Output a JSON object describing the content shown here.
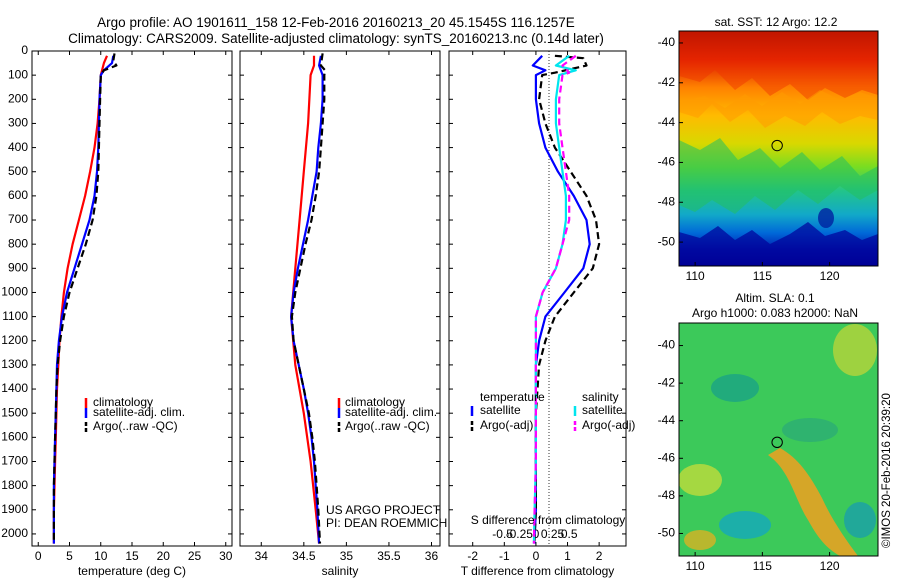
{
  "header": {
    "line1": "Argo profile: AO 1901611_158 12-Feb-2016 20160213_20 45.1545S 116.1257E",
    "line2": "Climatology: CARS2009. Satellite-adjusted climatology: synTS_20160213.nc (0.14d later)"
  },
  "colors": {
    "climatology": "#ff0000",
    "satellite": "#0000ff",
    "argo": "#000000",
    "salinity_sat": "#00e5ee",
    "salinity_argo": "#ff00ff"
  },
  "chart_data": [
    {
      "type": "line",
      "id": "temperature",
      "xlabel": "temperature (deg C)",
      "ylabel": "",
      "xlim": [
        -1,
        31
      ],
      "ylim": [
        2050,
        0
      ],
      "xticks": [
        0,
        5,
        10,
        15,
        20,
        25,
        30
      ],
      "yticks": [
        0,
        100,
        200,
        300,
        400,
        500,
        600,
        700,
        800,
        900,
        1000,
        1100,
        1200,
        1300,
        1400,
        1500,
        1600,
        1700,
        1800,
        1900,
        2000
      ],
      "legend": [
        "climatology",
        "satellite-adj. clim.",
        "Argo(..raw -QC)"
      ],
      "series": [
        {
          "name": "climatology",
          "color": "#ff0000",
          "dash": "",
          "points": [
            [
              11.0,
              20
            ],
            [
              10.5,
              50
            ],
            [
              10.0,
              100
            ],
            [
              9.8,
              200
            ],
            [
              9.5,
              300
            ],
            [
              9.0,
              400
            ],
            [
              8.3,
              500
            ],
            [
              7.5,
              600
            ],
            [
              6.5,
              700
            ],
            [
              5.5,
              800
            ],
            [
              4.7,
              900
            ],
            [
              4.1,
              1000
            ],
            [
              3.7,
              1100
            ],
            [
              3.4,
              1200
            ],
            [
              3.2,
              1300
            ],
            [
              3.0,
              1400
            ],
            [
              2.9,
              1500
            ],
            [
              2.8,
              1600
            ],
            [
              2.7,
              1700
            ],
            [
              2.6,
              1800
            ],
            [
              2.5,
              1900
            ],
            [
              2.5,
              2040
            ]
          ]
        },
        {
          "name": "satellite-adj. clim.",
          "color": "#0000ff",
          "dash": "",
          "points": [
            [
              12.0,
              20
            ],
            [
              11.8,
              50
            ],
            [
              10.5,
              80
            ],
            [
              10.0,
              100
            ],
            [
              9.8,
              200
            ],
            [
              9.7,
              300
            ],
            [
              9.6,
              400
            ],
            [
              9.4,
              500
            ],
            [
              9.0,
              600
            ],
            [
              8.2,
              700
            ],
            [
              7.0,
              800
            ],
            [
              5.8,
              900
            ],
            [
              4.6,
              1000
            ],
            [
              3.8,
              1100
            ],
            [
              3.3,
              1200
            ],
            [
              3.0,
              1300
            ],
            [
              2.9,
              1400
            ],
            [
              2.8,
              1500
            ],
            [
              2.7,
              1600
            ],
            [
              2.6,
              1700
            ],
            [
              2.5,
              1800
            ],
            [
              2.5,
              1900
            ],
            [
              2.5,
              2040
            ]
          ]
        },
        {
          "name": "Argo(..raw -QC)",
          "color": "#000000",
          "dash": "7,4",
          "points": [
            [
              12.2,
              10
            ],
            [
              12.0,
              40
            ],
            [
              12.5,
              60
            ],
            [
              10.5,
              80
            ],
            [
              10.0,
              100
            ],
            [
              9.9,
              200
            ],
            [
              9.8,
              300
            ],
            [
              9.7,
              400
            ],
            [
              9.6,
              500
            ],
            [
              9.3,
              600
            ],
            [
              8.7,
              700
            ],
            [
              7.6,
              800
            ],
            [
              6.3,
              900
            ],
            [
              5.0,
              1000
            ],
            [
              4.1,
              1100
            ],
            [
              3.5,
              1200
            ],
            [
              3.1,
              1300
            ],
            [
              2.9,
              1400
            ],
            [
              2.8,
              1500
            ],
            [
              2.7,
              1600
            ],
            [
              2.6,
              1700
            ],
            [
              2.5,
              1800
            ],
            [
              2.5,
              1900
            ],
            [
              2.5,
              2040
            ]
          ]
        }
      ]
    },
    {
      "type": "line",
      "id": "salinity",
      "xlabel": "salinity",
      "ylabel": "",
      "xlim": [
        33.75,
        36.1
      ],
      "ylim": [
        2050,
        0
      ],
      "xticks": [
        34,
        34.5,
        35,
        35.5,
        36
      ],
      "legend": [
        "climatology",
        "satellite-adj. clim.",
        "Argo(..raw -QC)"
      ],
      "annotation": [
        "US ARGO PROJECT",
        "PI: DEAN ROEMMICH"
      ],
      "series": [
        {
          "name": "climatology",
          "color": "#ff0000",
          "dash": "",
          "points": [
            [
              34.62,
              20
            ],
            [
              34.62,
              60
            ],
            [
              34.58,
              100
            ],
            [
              34.55,
              300
            ],
            [
              34.5,
              500
            ],
            [
              34.45,
              700
            ],
            [
              34.4,
              900
            ],
            [
              34.35,
              1100
            ],
            [
              34.4,
              1300
            ],
            [
              34.5,
              1500
            ],
            [
              34.58,
              1700
            ],
            [
              34.64,
              1900
            ],
            [
              34.68,
              2040
            ]
          ]
        },
        {
          "name": "satellite-adj. clim.",
          "color": "#0000ff",
          "dash": "",
          "points": [
            [
              34.7,
              20
            ],
            [
              34.68,
              60
            ],
            [
              34.72,
              100
            ],
            [
              34.72,
              200
            ],
            [
              34.7,
              300
            ],
            [
              34.67,
              400
            ],
            [
              34.65,
              500
            ],
            [
              34.6,
              600
            ],
            [
              34.55,
              700
            ],
            [
              34.49,
              800
            ],
            [
              34.43,
              900
            ],
            [
              34.38,
              1000
            ],
            [
              34.35,
              1100
            ],
            [
              34.38,
              1200
            ],
            [
              34.44,
              1300
            ],
            [
              34.5,
              1400
            ],
            [
              34.55,
              1500
            ],
            [
              34.59,
              1600
            ],
            [
              34.62,
              1700
            ],
            [
              34.64,
              1800
            ],
            [
              34.66,
              1900
            ],
            [
              34.68,
              2040
            ]
          ]
        },
        {
          "name": "Argo(..raw -QC)",
          "color": "#000000",
          "dash": "7,4",
          "points": [
            [
              34.72,
              10
            ],
            [
              34.7,
              60
            ],
            [
              34.75,
              80
            ],
            [
              34.74,
              100
            ],
            [
              34.74,
              200
            ],
            [
              34.72,
              300
            ],
            [
              34.7,
              400
            ],
            [
              34.68,
              500
            ],
            [
              34.64,
              600
            ],
            [
              34.59,
              700
            ],
            [
              34.52,
              800
            ],
            [
              34.46,
              900
            ],
            [
              34.4,
              1000
            ],
            [
              34.36,
              1100
            ],
            [
              34.38,
              1200
            ],
            [
              34.44,
              1300
            ],
            [
              34.5,
              1400
            ],
            [
              34.56,
              1500
            ],
            [
              34.6,
              1600
            ],
            [
              34.63,
              1700
            ],
            [
              34.65,
              1800
            ],
            [
              34.67,
              1900
            ],
            [
              34.69,
              2040
            ]
          ]
        }
      ]
    },
    {
      "type": "line",
      "id": "difference",
      "xlabel": "T difference from climatology",
      "xlabel2": "S difference from climatology",
      "xlim": [
        -2.75,
        2.85
      ],
      "ylim": [
        2050,
        0
      ],
      "xticks": [
        -2,
        -1,
        0,
        1,
        2
      ],
      "xticks2": [
        -0.5,
        -0.25,
        0,
        0.25,
        0.5
      ],
      "legend_titles": [
        "temperature",
        "salinity"
      ],
      "legend": [
        "satellite",
        "Argo(-adj)",
        "satellite",
        "Argo(-adj)"
      ],
      "series": [
        {
          "name": "satellite",
          "group": "temperature",
          "color": "#0000ff",
          "dash": "",
          "points": [
            [
              0.2,
              20
            ],
            [
              -0.1,
              60
            ],
            [
              0.3,
              80
            ],
            [
              0.0,
              100
            ],
            [
              0.0,
              200
            ],
            [
              0.1,
              300
            ],
            [
              0.3,
              400
            ],
            [
              0.7,
              500
            ],
            [
              1.2,
              600
            ],
            [
              1.6,
              700
            ],
            [
              1.7,
              800
            ],
            [
              1.5,
              900
            ],
            [
              0.9,
              1000
            ],
            [
              0.3,
              1100
            ],
            [
              0.1,
              1200
            ],
            [
              0.0,
              1300
            ],
            [
              0.0,
              1500
            ],
            [
              0.0,
              1700
            ],
            [
              0.0,
              1900
            ],
            [
              -0.05,
              2040
            ]
          ]
        },
        {
          "name": "Argo(-adj)",
          "group": "temperature",
          "color": "#000000",
          "dash": "7,4",
          "points": [
            [
              0.6,
              20
            ],
            [
              1.5,
              30
            ],
            [
              1.6,
              60
            ],
            [
              0.6,
              90
            ],
            [
              0.2,
              100
            ],
            [
              0.1,
              200
            ],
            [
              0.3,
              300
            ],
            [
              0.6,
              400
            ],
            [
              1.1,
              500
            ],
            [
              1.6,
              600
            ],
            [
              1.9,
              700
            ],
            [
              2.0,
              800
            ],
            [
              1.8,
              900
            ],
            [
              1.2,
              1000
            ],
            [
              0.6,
              1100
            ],
            [
              0.3,
              1200
            ],
            [
              0.1,
              1300
            ],
            [
              0.0,
              1500
            ],
            [
              0.0,
              1700
            ],
            [
              0.0,
              1900
            ],
            [
              -0.05,
              2040
            ]
          ]
        },
        {
          "name": "satellite",
          "group": "salinity",
          "color": "#00e5ee",
          "dash": "",
          "points": [
            [
              0.5,
              20
            ],
            [
              0.3,
              60
            ],
            [
              0.6,
              80
            ],
            [
              0.35,
              100
            ],
            [
              0.3,
              200
            ],
            [
              0.3,
              300
            ],
            [
              0.35,
              400
            ],
            [
              0.4,
              500
            ],
            [
              0.45,
              600
            ],
            [
              0.45,
              700
            ],
            [
              0.4,
              800
            ],
            [
              0.3,
              900
            ],
            [
              0.1,
              1000
            ],
            [
              0.0,
              1100
            ],
            [
              0.0,
              1300
            ],
            [
              0.0,
              1500
            ],
            [
              0.0,
              1700
            ],
            [
              -0.02,
              1900
            ],
            [
              -0.03,
              2040
            ]
          ]
        },
        {
          "name": "Argo(-adj)",
          "group": "salinity",
          "color": "#ff00ff",
          "dash": "7,4",
          "points": [
            [
              0.6,
              20
            ],
            [
              0.4,
              60
            ],
            [
              0.5,
              90
            ],
            [
              0.4,
              100
            ],
            [
              0.35,
              200
            ],
            [
              0.35,
              300
            ],
            [
              0.4,
              400
            ],
            [
              0.45,
              500
            ],
            [
              0.5,
              600
            ],
            [
              0.5,
              700
            ],
            [
              0.4,
              800
            ],
            [
              0.3,
              900
            ],
            [
              0.1,
              1000
            ],
            [
              0.0,
              1100
            ],
            [
              0.0,
              1300
            ],
            [
              0.0,
              1500
            ],
            [
              0.0,
              1700
            ],
            [
              -0.02,
              1900
            ],
            [
              -0.03,
              2040
            ]
          ]
        }
      ]
    },
    {
      "type": "heatmap",
      "id": "sst",
      "title": "sat. SST: 12 Argo: 12.2",
      "xlim": [
        108.8,
        123.6
      ],
      "ylim": [
        -51.2,
        -39.4
      ],
      "xticks": [
        110,
        115,
        120
      ],
      "yticks": [
        -40,
        -42,
        -44,
        -46,
        -48,
        -50
      ],
      "marker": [
        116.1,
        -45.15
      ]
    },
    {
      "type": "heatmap",
      "id": "sla",
      "title": "Altim. SLA: 0.1",
      "subtitle": "Argo h1000: 0.083 h2000: NaN",
      "xlim": [
        108.8,
        123.6
      ],
      "ylim": [
        -51.2,
        -38.8
      ],
      "xticks": [
        110,
        115,
        120
      ],
      "yticks": [
        -40,
        -42,
        -44,
        -46,
        -48,
        -50
      ],
      "marker": [
        116.1,
        -45.15
      ]
    }
  ],
  "credit": "©IMOS 20-Feb-2016 20:39:20"
}
